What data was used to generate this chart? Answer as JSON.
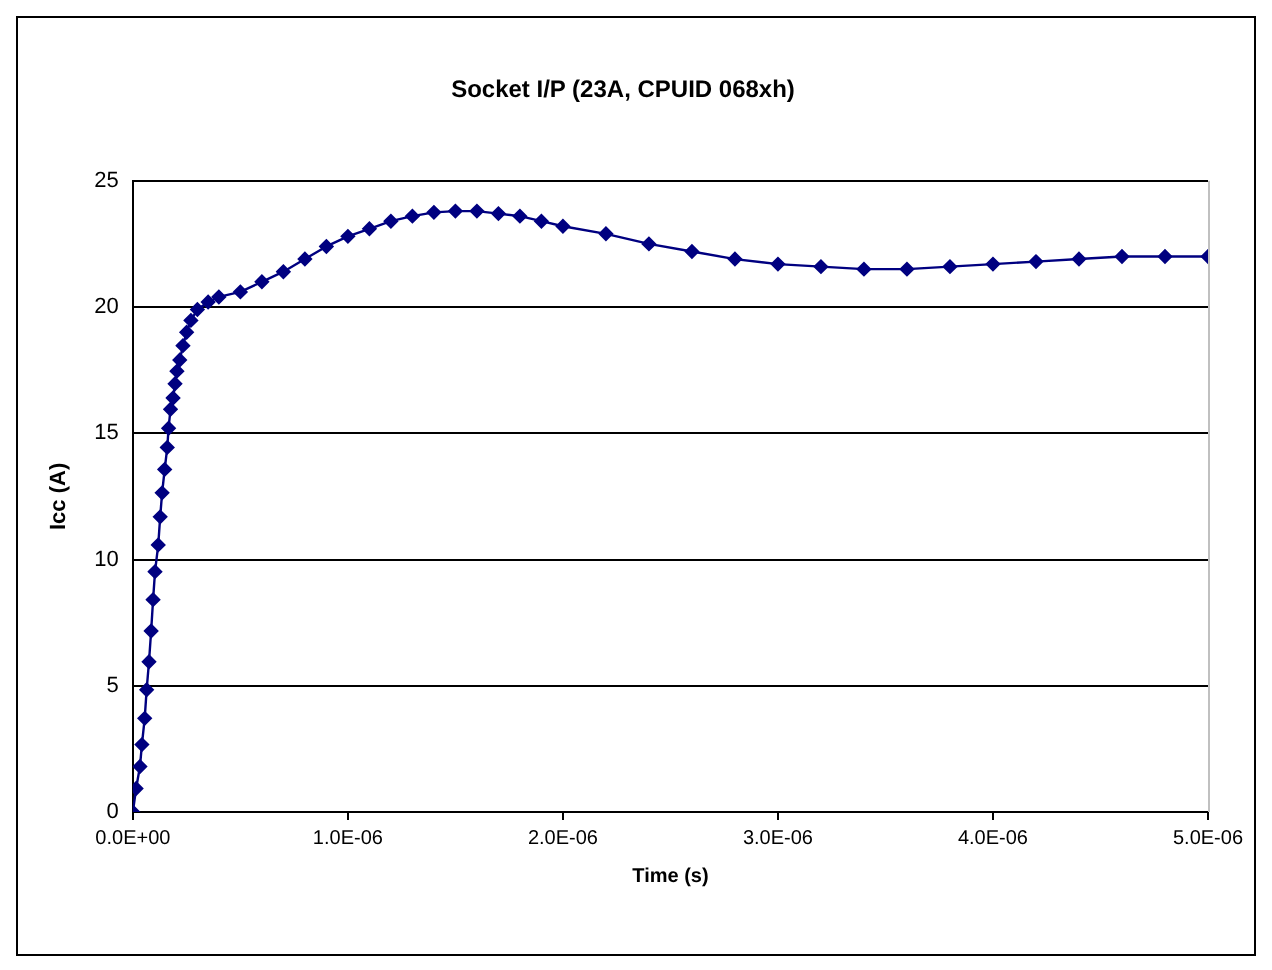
{
  "chart_data": {
    "type": "line",
    "title": "Socket I/P (23A, CPUID 068xh)",
    "xlabel": "Time (s)",
    "ylabel": "Icc (A)",
    "x": [
      0,
      1.5e-08,
      3.3e-08,
      4.2e-08,
      5.5e-08,
      6.4e-08,
      7.5e-08,
      8.5e-08,
      9.4e-08,
      1.03e-07,
      1.18e-07,
      1.27e-07,
      1.36e-07,
      1.48e-07,
      1.6e-07,
      1.66e-07,
      1.75e-07,
      1.87e-07,
      1.96e-07,
      2.05e-07,
      2.18e-07,
      2.33e-07,
      2.5e-07,
      2.7e-07,
      3e-07,
      3.5e-07,
      4e-07,
      5e-07,
      6e-07,
      7e-07,
      8e-07,
      9e-07,
      1e-06,
      1.1e-06,
      1.2e-06,
      1.3e-06,
      1.4e-06,
      1.5e-06,
      1.6e-06,
      1.7e-06,
      1.8e-06,
      1.9e-06,
      2e-06,
      2.2e-06,
      2.4e-06,
      2.6e-06,
      2.8e-06,
      3e-06,
      3.2e-06,
      3.4e-06,
      3.6e-06,
      3.8e-06,
      4e-06,
      4.2e-06,
      4.4e-06,
      4.6e-06,
      4.8e-06,
      5e-06
    ],
    "series": [
      {
        "color": "#000080",
        "values": [
          0,
          0.93,
          1.8,
          2.67,
          3.71,
          4.84,
          5.95,
          7.17,
          8.41,
          9.52,
          10.58,
          11.69,
          12.64,
          13.57,
          14.44,
          15.2,
          15.95,
          16.4,
          16.96,
          17.46,
          17.9,
          18.47,
          19.0,
          19.47,
          19.9,
          20.2,
          20.4,
          20.6,
          21.0,
          21.4,
          21.9,
          22.4,
          22.8,
          23.1,
          23.4,
          23.6,
          23.75,
          23.8,
          23.8,
          23.7,
          23.6,
          23.4,
          23.2,
          22.9,
          22.5,
          22.2,
          21.9,
          21.7,
          21.6,
          21.5,
          21.5,
          21.6,
          21.7,
          21.8,
          21.9,
          22.0,
          22.0,
          22.0
        ]
      }
    ],
    "xlim": [
      0,
      5e-06
    ],
    "xticks": [
      {
        "value": 0,
        "label": "0.0E+00"
      },
      {
        "value": 1e-06,
        "label": "1.0E-06"
      },
      {
        "value": 2e-06,
        "label": "2.0E-06"
      },
      {
        "value": 3e-06,
        "label": "3.0E-06"
      },
      {
        "value": 4e-06,
        "label": "4.0E-06"
      },
      {
        "value": 5e-06,
        "label": "5.0E-06"
      }
    ],
    "ylim": [
      0,
      25
    ],
    "yticks": [
      0,
      5,
      10,
      15,
      20,
      25
    ],
    "grid": "y",
    "legend": false,
    "marker": "diamond",
    "line_style": "solid"
  }
}
